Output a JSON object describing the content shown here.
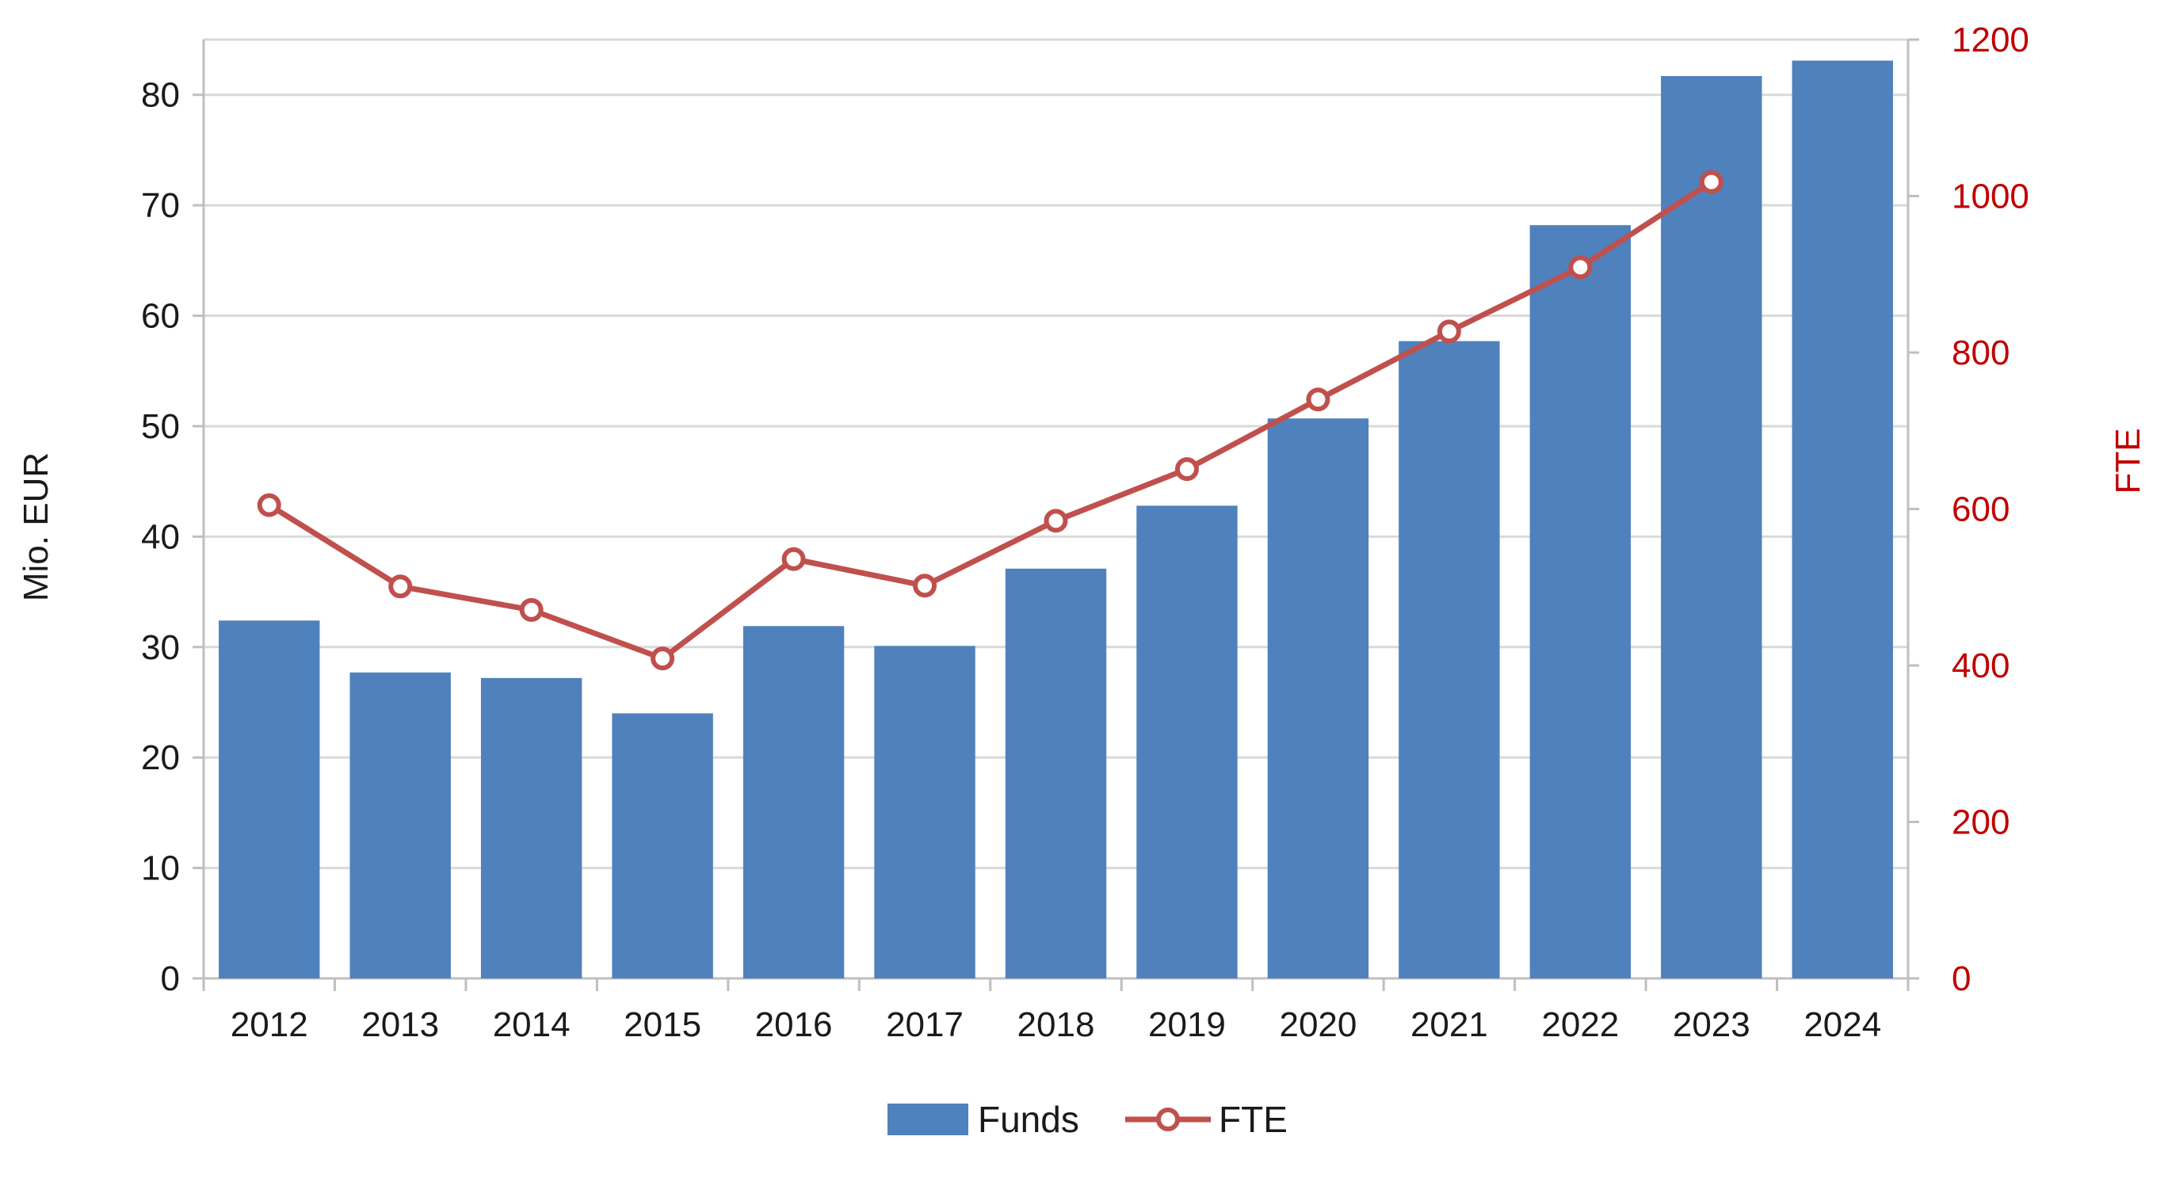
{
  "chart_data": {
    "type": "bar",
    "categories": [
      "2012",
      "2013",
      "2014",
      "2015",
      "2016",
      "2017",
      "2018",
      "2019",
      "2020",
      "2021",
      "2022",
      "2023",
      "2024"
    ],
    "series": [
      {
        "name": "Funds",
        "type": "bar",
        "axis": "left",
        "color": "#4f81bd",
        "values": [
          32.4,
          27.7,
          27.2,
          24.0,
          31.9,
          30.1,
          37.1,
          42.8,
          50.7,
          57.7,
          68.2,
          81.7,
          83.1
        ]
      },
      {
        "name": "FTE",
        "type": "line",
        "axis": "right",
        "color": "#c0504d",
        "values": [
          605,
          501,
          471,
          409,
          536,
          502,
          585,
          651,
          740,
          827,
          909,
          1018,
          null
        ]
      }
    ],
    "y_left": {
      "label": "Mio. EUR",
      "range": [
        0,
        85
      ],
      "ticks": [
        0,
        10,
        20,
        30,
        40,
        50,
        60,
        70,
        80
      ]
    },
    "y_right": {
      "label": "FTE",
      "range": [
        0,
        1200
      ],
      "ticks": [
        0,
        200,
        400,
        600,
        800,
        1000,
        1200
      ],
      "color": "#c00000"
    },
    "grid": true,
    "legend": {
      "placement": "bottom",
      "entries": [
        "Funds",
        "FTE"
      ]
    }
  }
}
